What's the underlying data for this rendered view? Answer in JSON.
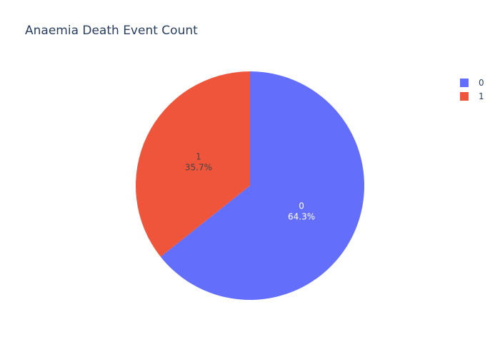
{
  "chart_data": {
    "type": "pie",
    "title": "Anaemia Death Event Count",
    "labels": [
      "0",
      "1"
    ],
    "values": [
      64.3,
      35.7
    ],
    "percent_labels": [
      "64.3%",
      "35.7%"
    ],
    "colors": [
      "#636efa",
      "#EF553B"
    ],
    "text_colors": [
      "#ffffff",
      "#444444"
    ],
    "legend_position": "top-right",
    "direction": "clockwise",
    "sort": "descending"
  }
}
